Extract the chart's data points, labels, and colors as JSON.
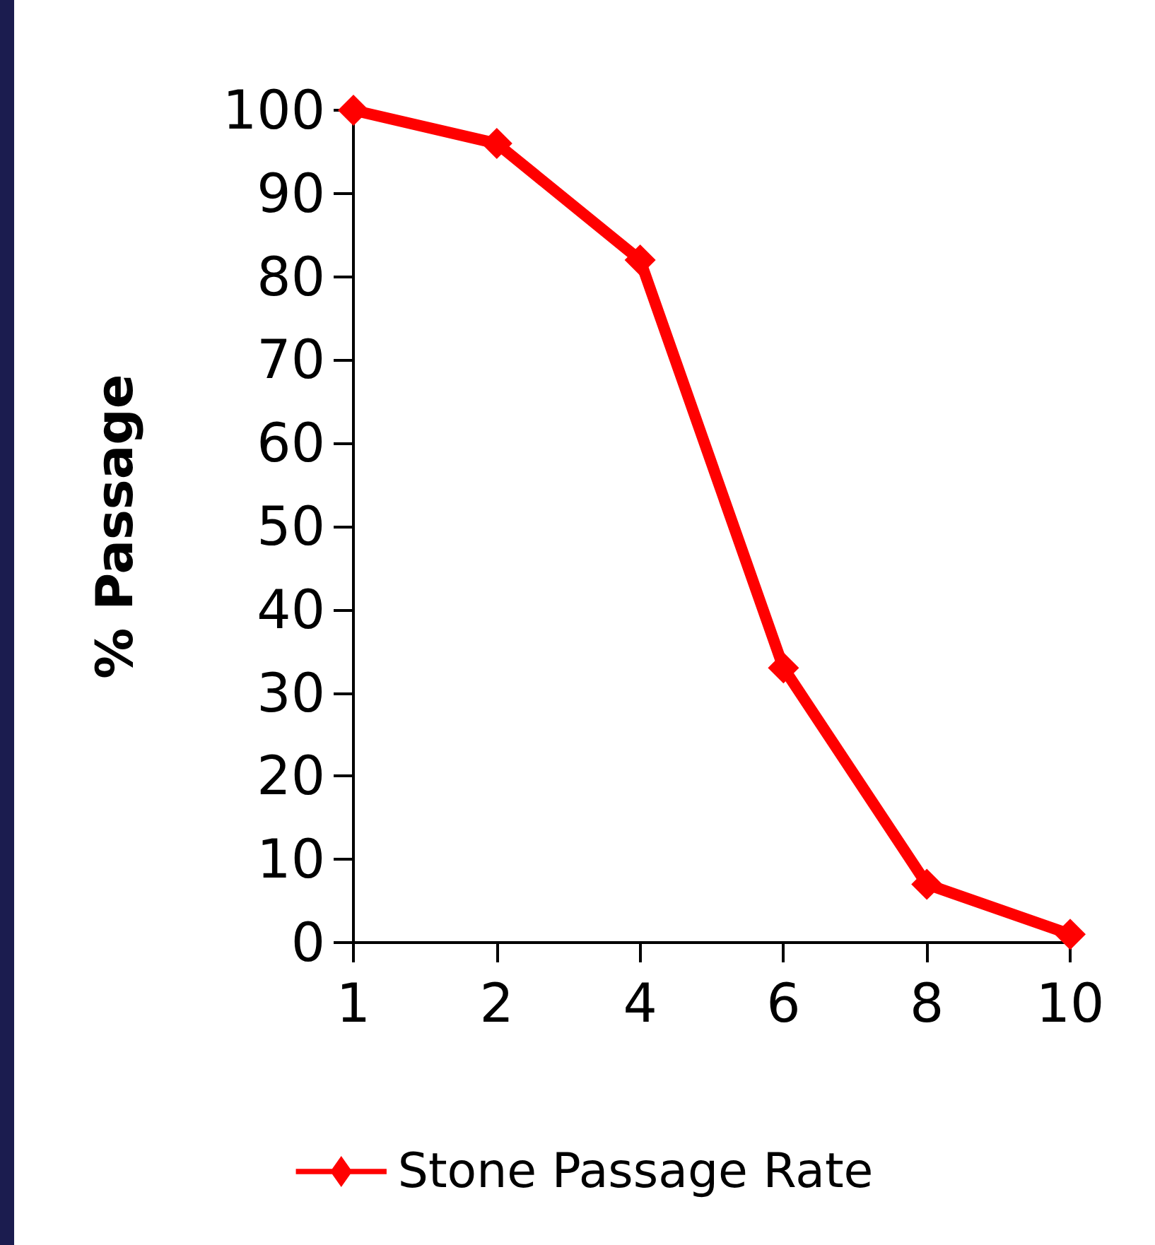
{
  "chart_data": {
    "type": "line",
    "ylabel": "% Passage",
    "categories": [
      "1",
      "2",
      "4",
      "6",
      "8",
      "10"
    ],
    "series": [
      {
        "name": "Stone Passage Rate",
        "color": "#ff0000",
        "values": [
          100,
          96,
          82,
          33,
          7,
          1
        ]
      }
    ],
    "ylim": [
      0,
      100
    ],
    "yticks": [
      0,
      10,
      20,
      30,
      40,
      50,
      60,
      70,
      80,
      90,
      100
    ],
    "grid": false,
    "legend": "bottom",
    "marker": "diamond",
    "line_style": "solid"
  }
}
